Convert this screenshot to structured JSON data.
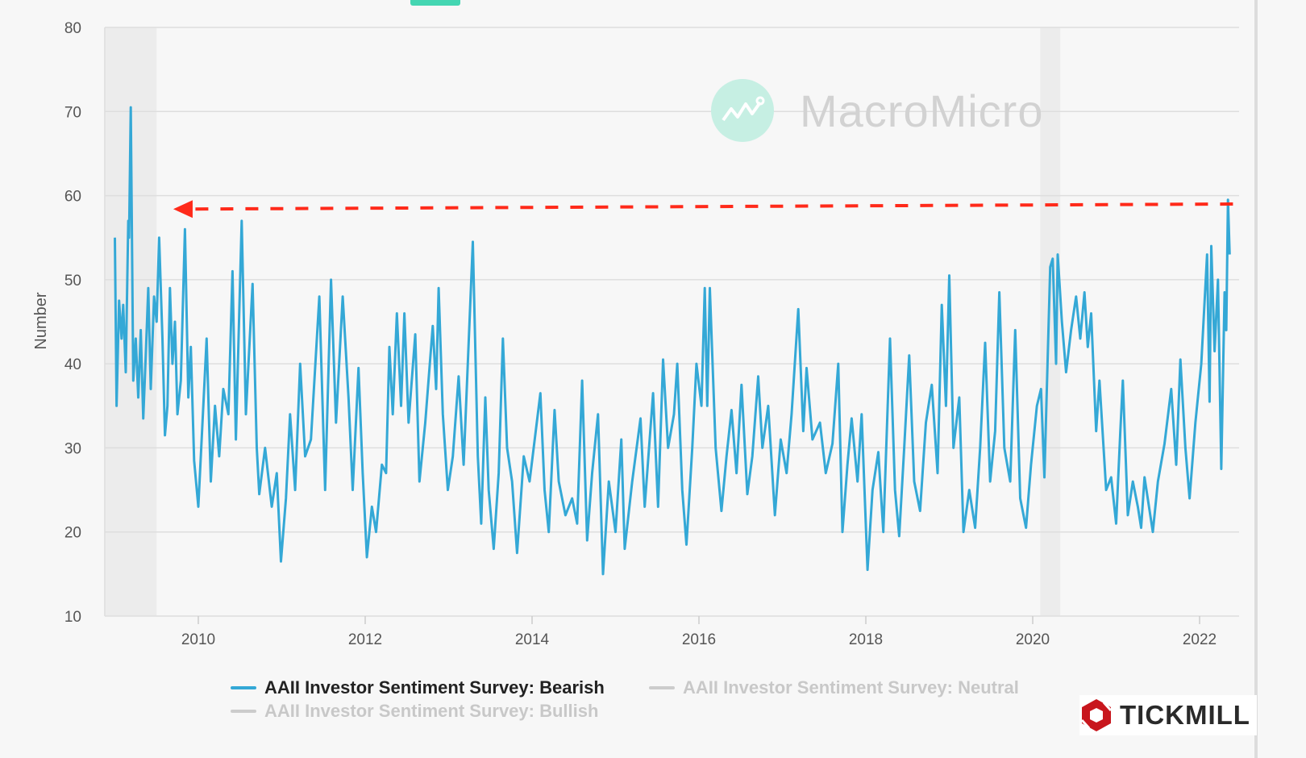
{
  "chart_data": {
    "type": "line",
    "title": "",
    "xlabel": "",
    "ylabel": "Number",
    "ylim": [
      10,
      80
    ],
    "xlim": [
      2008.87,
      2022.46
    ],
    "y_ticks": [
      "10",
      "20",
      "30",
      "40",
      "50",
      "60",
      "70",
      "80"
    ],
    "x_ticks": [
      "2010",
      "2012",
      "2014",
      "2016",
      "2018",
      "2020",
      "2022"
    ],
    "grid": "horizontal",
    "legend_position": "bottom",
    "recession_bands": [
      [
        2008.87,
        2009.5
      ],
      [
        2020.09,
        2020.33
      ]
    ],
    "annotation": {
      "type": "dashed-arrow",
      "color": "#ff2a1a",
      "from": [
        2022.4,
        59.0
      ],
      "to": [
        2009.7,
        58.4
      ]
    },
    "series": [
      {
        "name": "AAII Investor Sentiment Survey: Bearish",
        "color": "#34a8d6",
        "active": true,
        "points": [
          [
            2009.0,
            55
          ],
          [
            2009.02,
            35
          ],
          [
            2009.05,
            47.5
          ],
          [
            2009.08,
            43
          ],
          [
            2009.1,
            47
          ],
          [
            2009.13,
            39
          ],
          [
            2009.16,
            57
          ],
          [
            2009.17,
            55
          ],
          [
            2009.19,
            70.5
          ],
          [
            2009.22,
            38
          ],
          [
            2009.25,
            43
          ],
          [
            2009.28,
            36
          ],
          [
            2009.31,
            44
          ],
          [
            2009.34,
            33.5
          ],
          [
            2009.37,
            41
          ],
          [
            2009.4,
            49
          ],
          [
            2009.43,
            37
          ],
          [
            2009.47,
            48
          ],
          [
            2009.5,
            45
          ],
          [
            2009.53,
            55
          ],
          [
            2009.57,
            43
          ],
          [
            2009.6,
            31.5
          ],
          [
            2009.63,
            35
          ],
          [
            2009.66,
            49
          ],
          [
            2009.69,
            40
          ],
          [
            2009.72,
            45
          ],
          [
            2009.75,
            34
          ],
          [
            2009.79,
            38
          ],
          [
            2009.84,
            56
          ],
          [
            2009.88,
            36
          ],
          [
            2009.91,
            42
          ],
          [
            2009.95,
            28.5
          ],
          [
            2010.0,
            23
          ],
          [
            2010.06,
            35
          ],
          [
            2010.1,
            43
          ],
          [
            2010.15,
            26
          ],
          [
            2010.2,
            35
          ],
          [
            2010.25,
            29
          ],
          [
            2010.3,
            37
          ],
          [
            2010.36,
            34
          ],
          [
            2010.41,
            51
          ],
          [
            2010.45,
            31
          ],
          [
            2010.52,
            57
          ],
          [
            2010.57,
            34
          ],
          [
            2010.65,
            49.5
          ],
          [
            2010.7,
            30
          ],
          [
            2010.73,
            24.5
          ],
          [
            2010.8,
            30
          ],
          [
            2010.88,
            23
          ],
          [
            2010.94,
            27
          ],
          [
            2010.99,
            16.5
          ],
          [
            2011.05,
            24
          ],
          [
            2011.1,
            34
          ],
          [
            2011.16,
            25
          ],
          [
            2011.22,
            40
          ],
          [
            2011.28,
            29
          ],
          [
            2011.35,
            31
          ],
          [
            2011.45,
            48
          ],
          [
            2011.52,
            25
          ],
          [
            2011.59,
            50
          ],
          [
            2011.65,
            33
          ],
          [
            2011.73,
            48
          ],
          [
            2011.8,
            36
          ],
          [
            2011.85,
            25
          ],
          [
            2011.92,
            39.5
          ],
          [
            2011.97,
            27
          ],
          [
            2012.02,
            17
          ],
          [
            2012.08,
            23
          ],
          [
            2012.13,
            20
          ],
          [
            2012.2,
            28
          ],
          [
            2012.25,
            27
          ],
          [
            2012.29,
            42
          ],
          [
            2012.33,
            34
          ],
          [
            2012.38,
            46
          ],
          [
            2012.43,
            35
          ],
          [
            2012.47,
            46
          ],
          [
            2012.52,
            33
          ],
          [
            2012.6,
            43.5
          ],
          [
            2012.65,
            26
          ],
          [
            2012.72,
            33
          ],
          [
            2012.81,
            44.5
          ],
          [
            2012.85,
            37
          ],
          [
            2012.88,
            49
          ],
          [
            2012.93,
            34
          ],
          [
            2012.99,
            25
          ],
          [
            2013.05,
            29
          ],
          [
            2013.12,
            38.5
          ],
          [
            2013.18,
            28
          ],
          [
            2013.29,
            54.5
          ],
          [
            2013.35,
            29
          ],
          [
            2013.39,
            21
          ],
          [
            2013.44,
            36
          ],
          [
            2013.48,
            25
          ],
          [
            2013.54,
            18
          ],
          [
            2013.6,
            27
          ],
          [
            2013.65,
            43
          ],
          [
            2013.7,
            30
          ],
          [
            2013.76,
            26
          ],
          [
            2013.82,
            17.5
          ],
          [
            2013.9,
            29
          ],
          [
            2013.97,
            26
          ],
          [
            2014.1,
            36.5
          ],
          [
            2014.15,
            25
          ],
          [
            2014.2,
            20
          ],
          [
            2014.27,
            34.5
          ],
          [
            2014.32,
            26
          ],
          [
            2014.4,
            22
          ],
          [
            2014.48,
            24
          ],
          [
            2014.54,
            21
          ],
          [
            2014.6,
            38
          ],
          [
            2014.66,
            19
          ],
          [
            2014.72,
            27
          ],
          [
            2014.79,
            34
          ],
          [
            2014.85,
            15
          ],
          [
            2014.92,
            26
          ],
          [
            2015.0,
            20
          ],
          [
            2015.07,
            31
          ],
          [
            2015.11,
            18
          ],
          [
            2015.2,
            26
          ],
          [
            2015.3,
            33.5
          ],
          [
            2015.35,
            23
          ],
          [
            2015.45,
            36.5
          ],
          [
            2015.51,
            23
          ],
          [
            2015.57,
            40.5
          ],
          [
            2015.63,
            30
          ],
          [
            2015.7,
            34
          ],
          [
            2015.74,
            40
          ],
          [
            2015.8,
            25
          ],
          [
            2015.85,
            18.5
          ],
          [
            2015.92,
            30
          ],
          [
            2015.97,
            40
          ],
          [
            2016.03,
            35
          ],
          [
            2016.07,
            49
          ],
          [
            2016.1,
            35
          ],
          [
            2016.13,
            49
          ],
          [
            2016.2,
            30
          ],
          [
            2016.27,
            22.5
          ],
          [
            2016.33,
            29
          ],
          [
            2016.39,
            34.5
          ],
          [
            2016.45,
            27
          ],
          [
            2016.51,
            37.5
          ],
          [
            2016.58,
            24.5
          ],
          [
            2016.64,
            29
          ],
          [
            2016.71,
            38.5
          ],
          [
            2016.76,
            30
          ],
          [
            2016.83,
            35
          ],
          [
            2016.91,
            22
          ],
          [
            2016.98,
            31
          ],
          [
            2017.05,
            27
          ],
          [
            2017.11,
            34
          ],
          [
            2017.19,
            46.5
          ],
          [
            2017.25,
            32
          ],
          [
            2017.29,
            39.5
          ],
          [
            2017.36,
            31
          ],
          [
            2017.45,
            33
          ],
          [
            2017.52,
            27
          ],
          [
            2017.6,
            30.5
          ],
          [
            2017.67,
            40
          ],
          [
            2017.72,
            20
          ],
          [
            2017.78,
            28
          ],
          [
            2017.83,
            33.5
          ],
          [
            2017.9,
            26
          ],
          [
            2017.95,
            34
          ],
          [
            2018.02,
            15.5
          ],
          [
            2018.08,
            25
          ],
          [
            2018.15,
            29.5
          ],
          [
            2018.21,
            20
          ],
          [
            2018.29,
            43
          ],
          [
            2018.35,
            25
          ],
          [
            2018.4,
            19.5
          ],
          [
            2018.46,
            30
          ],
          [
            2018.52,
            41
          ],
          [
            2018.58,
            26
          ],
          [
            2018.65,
            22.5
          ],
          [
            2018.72,
            33
          ],
          [
            2018.79,
            37.5
          ],
          [
            2018.86,
            27
          ],
          [
            2018.91,
            47
          ],
          [
            2018.96,
            35
          ],
          [
            2019.0,
            50.5
          ],
          [
            2019.05,
            30
          ],
          [
            2019.12,
            36
          ],
          [
            2019.17,
            20
          ],
          [
            2019.24,
            25
          ],
          [
            2019.31,
            20.5
          ],
          [
            2019.37,
            30
          ],
          [
            2019.43,
            42.5
          ],
          [
            2019.49,
            26
          ],
          [
            2019.55,
            32
          ],
          [
            2019.6,
            48.5
          ],
          [
            2019.66,
            30
          ],
          [
            2019.73,
            26
          ],
          [
            2019.79,
            44
          ],
          [
            2019.85,
            24
          ],
          [
            2019.92,
            20.5
          ],
          [
            2019.98,
            28
          ],
          [
            2020.05,
            35
          ],
          [
            2020.1,
            37
          ],
          [
            2020.14,
            26.5
          ],
          [
            2020.21,
            51.5
          ],
          [
            2020.24,
            52.5
          ],
          [
            2020.28,
            40
          ],
          [
            2020.3,
            53
          ],
          [
            2020.35,
            45
          ],
          [
            2020.4,
            39
          ],
          [
            2020.46,
            44
          ],
          [
            2020.52,
            48
          ],
          [
            2020.57,
            43
          ],
          [
            2020.62,
            48.5
          ],
          [
            2020.66,
            42
          ],
          [
            2020.7,
            46
          ],
          [
            2020.76,
            32
          ],
          [
            2020.8,
            38
          ],
          [
            2020.88,
            25
          ],
          [
            2020.94,
            26.5
          ],
          [
            2021.0,
            21
          ],
          [
            2021.05,
            32
          ],
          [
            2021.08,
            38
          ],
          [
            2021.14,
            22
          ],
          [
            2021.2,
            26
          ],
          [
            2021.26,
            23
          ],
          [
            2021.3,
            20.5
          ],
          [
            2021.34,
            26.5
          ],
          [
            2021.44,
            20
          ],
          [
            2021.5,
            26
          ],
          [
            2021.58,
            30.5
          ],
          [
            2021.66,
            37
          ],
          [
            2021.72,
            28
          ],
          [
            2021.77,
            40.5
          ],
          [
            2021.83,
            30
          ],
          [
            2021.88,
            24
          ],
          [
            2021.95,
            33
          ],
          [
            2022.02,
            40
          ],
          [
            2022.09,
            53
          ],
          [
            2022.12,
            35.5
          ],
          [
            2022.14,
            54
          ],
          [
            2022.18,
            41.5
          ],
          [
            2022.22,
            50
          ],
          [
            2022.26,
            27.5
          ],
          [
            2022.3,
            48.5
          ],
          [
            2022.32,
            44
          ],
          [
            2022.34,
            59.5
          ],
          [
            2022.36,
            53
          ]
        ]
      },
      {
        "name": "AAII Investor Sentiment Survey: Neutral",
        "color": "#cccccc",
        "active": false,
        "points": []
      },
      {
        "name": "AAII Investor Sentiment Survey: Bullish",
        "color": "#cccccc",
        "active": false,
        "points": []
      }
    ]
  },
  "watermark": {
    "text": "MacroMicro",
    "icon": "chart-line-icon"
  },
  "logo": {
    "text": "TICKMILL",
    "color": "#c8161d"
  }
}
